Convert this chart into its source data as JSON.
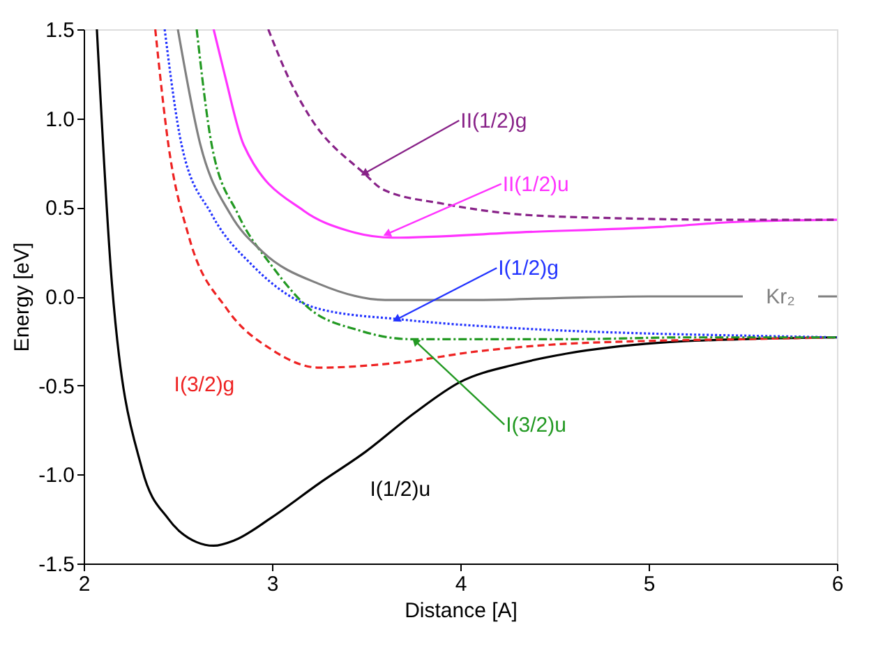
{
  "chart_data": {
    "type": "line",
    "xlabel": "Distance  [A]",
    "ylabel": "Energy  [eV]",
    "xlim": [
      2,
      6
    ],
    "xticks": [
      2,
      3,
      4,
      5,
      6
    ],
    "ylim": [
      -1.5,
      1.5
    ],
    "yticks": [
      {
        "value": -1.5,
        "label": "-1.5"
      },
      {
        "value": -1,
        "label": "-1.0"
      },
      {
        "value": -0.5,
        "label": "-0.5"
      },
      {
        "value": 0,
        "label": "0.0"
      },
      {
        "value": 0.5,
        "label": "0.5"
      },
      {
        "value": 1,
        "label": "1.0"
      },
      {
        "value": 1.5,
        "label": "1.5"
      }
    ],
    "grid": false,
    "marker": "none",
    "series": [
      {
        "color": "#000000",
        "line_style": "solid",
        "x": [
          2.07,
          2.15,
          2.31,
          2.45,
          2.6,
          2.69,
          2.8,
          3.0,
          3.25,
          3.5,
          3.75,
          4.0,
          4.3,
          4.57,
          5.06,
          5.5,
          6.0
        ],
        "values": [
          1.5,
          0.07,
          -0.97,
          -1.25,
          -1.38,
          -1.4,
          -1.37,
          -1.24,
          -1.05,
          -0.87,
          -0.66,
          -0.48,
          -0.38,
          -0.32,
          -0.26,
          -0.24,
          -0.23
        ]
      },
      {
        "color": "#ee2222",
        "line_style": "dashed",
        "x": [
          2.38,
          2.45,
          2.56,
          2.76,
          3.0,
          3.25,
          3.69,
          4.08,
          4.5,
          5.0,
          5.5,
          6.0
        ],
        "values": [
          1.5,
          0.85,
          0.33,
          -0.07,
          -0.3,
          -0.4,
          -0.37,
          -0.31,
          -0.27,
          -0.25,
          -0.24,
          -0.23
        ]
      },
      {
        "color": "#2233ff",
        "line_style": "dotted",
        "x": [
          2.43,
          2.52,
          2.68,
          2.9,
          3.25,
          3.69,
          4.32,
          5.06,
          5.5,
          6.0
        ],
        "values": [
          1.5,
          0.85,
          0.46,
          0.17,
          -0.07,
          -0.13,
          -0.18,
          -0.21,
          -0.22,
          -0.23
        ]
      },
      {
        "color": "#229922",
        "line_style": "dashdot",
        "x": [
          2.6,
          2.68,
          2.82,
          3.0,
          3.2,
          3.46,
          3.73,
          4.1,
          4.6,
          5.2,
          6.0
        ],
        "values": [
          1.5,
          0.85,
          0.46,
          0.17,
          -0.07,
          -0.19,
          -0.24,
          -0.24,
          -0.24,
          -0.23,
          -0.23
        ]
      },
      {
        "color": "#808080",
        "line_style": "solid",
        "x": [
          2.5,
          2.62,
          2.78,
          2.95,
          3.25,
          3.6,
          4.1,
          4.5,
          5.0,
          5.5,
          5.7,
          5.9,
          6.0
        ],
        "values": [
          1.5,
          0.85,
          0.46,
          0.25,
          0.07,
          -0.02,
          -0.02,
          -0.01,
          0,
          0,
          null,
          0,
          0
        ]
      },
      {
        "color": "#ff33ff",
        "line_style": "solid",
        "x": [
          2.69,
          2.75,
          2.85,
          3.17,
          3.4,
          3.64,
          4.32,
          5.06,
          5.5,
          6.0
        ],
        "values": [
          1.5,
          1.24,
          0.85,
          0.48,
          0.37,
          0.33,
          0.36,
          0.39,
          0.42,
          0.43
        ]
      },
      {
        "color": "#882288",
        "line_style": "dashed",
        "x": [
          2.98,
          3.1,
          3.2,
          3.49,
          3.59,
          3.91,
          4.32,
          4.8,
          5.5,
          6.0
        ],
        "values": [
          1.5,
          1.2,
          1.01,
          0.69,
          0.6,
          0.52,
          0.46,
          0.44,
          0.43,
          0.43
        ]
      }
    ],
    "annotations": [
      {
        "text": "II(1/2)g",
        "x": 3.49,
        "y": 0.69
      },
      {
        "text": "II(1/2)u",
        "x": 3.61,
        "y": 0.35
      },
      {
        "text": "I(1/2)g",
        "x": 3.66,
        "y": -0.13
      },
      "Kr₂",
      {
        "text": "I(3/2)u",
        "x": 3.76,
        "y": -0.25
      },
      "I(3/2)g",
      "I(1/2)u"
    ]
  }
}
